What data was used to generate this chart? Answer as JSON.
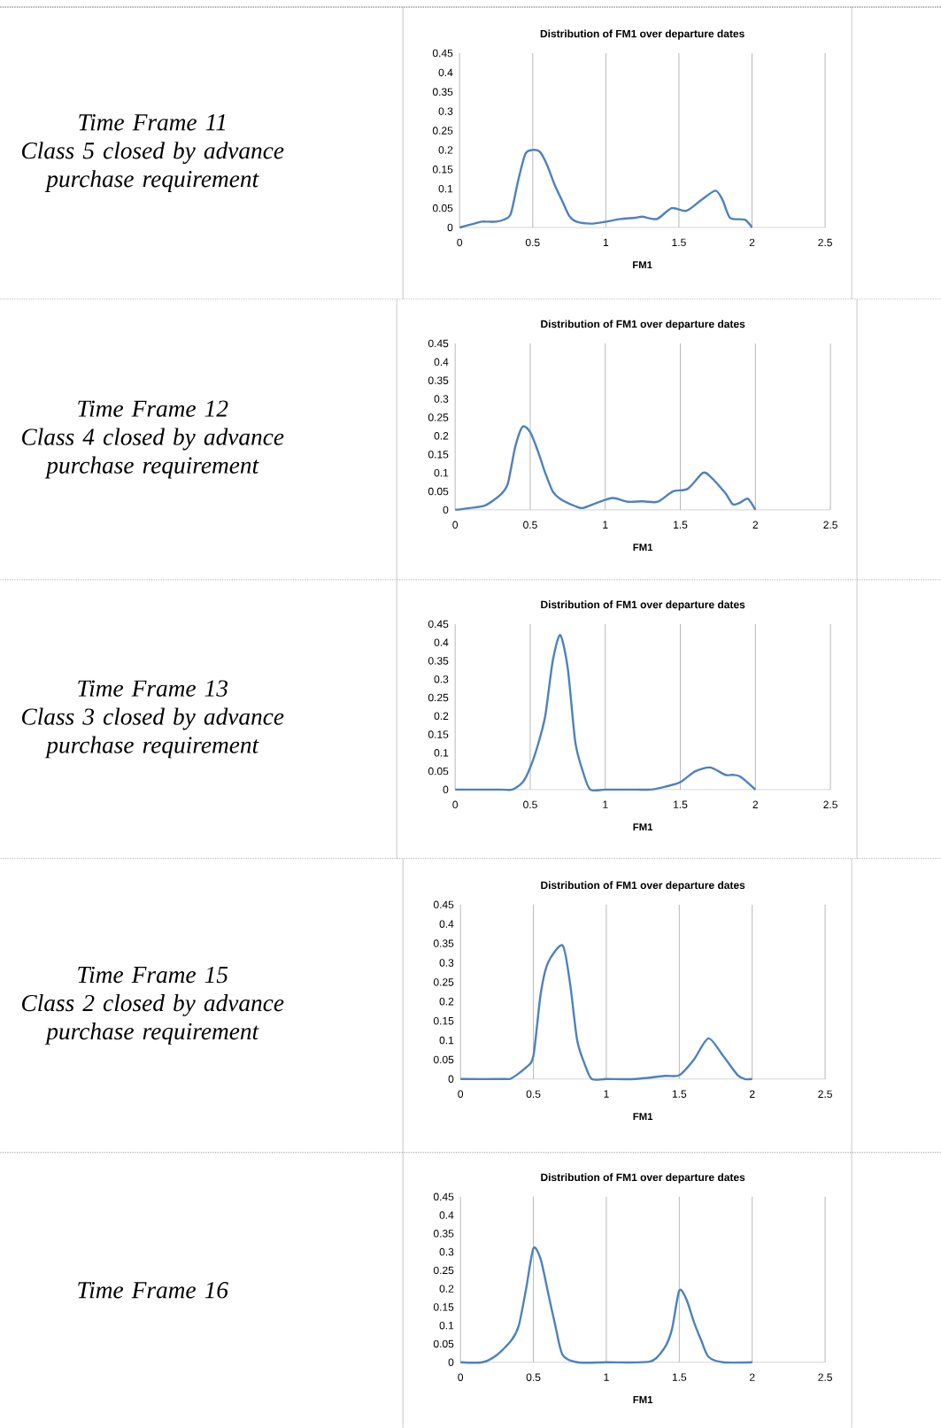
{
  "chart_data": [
    {
      "type": "line",
      "title": "Distribution of FM1 over departure dates",
      "xlabel": "FM1",
      "annotations": [
        "Time Frame 11",
        "Class 5 closed by advance purchase requirement"
      ],
      "color": "#4f81bd",
      "grid": "x",
      "xlim": [
        0,
        2.5
      ],
      "ylim": [
        0,
        0.45
      ],
      "xticks": [
        0,
        0.5,
        1,
        1.5,
        2,
        2.5
      ],
      "yticks": [
        0,
        0.05,
        0.1,
        0.15,
        0.2,
        0.25,
        0.3,
        0.35,
        0.4,
        0.45
      ],
      "x": [
        0,
        0.1,
        0.15,
        0.2,
        0.25,
        0.3,
        0.35,
        0.4,
        0.45,
        0.5,
        0.55,
        0.6,
        0.65,
        0.7,
        0.75,
        0.8,
        0.9,
        1.0,
        1.1,
        1.2,
        1.25,
        1.35,
        1.45,
        1.55,
        1.65,
        1.75,
        1.8,
        1.85,
        1.95,
        2.0
      ],
      "values": [
        0,
        0.01,
        0.015,
        0.015,
        0.015,
        0.02,
        0.035,
        0.12,
        0.19,
        0.2,
        0.195,
        0.16,
        0.11,
        0.07,
        0.03,
        0.015,
        0.01,
        0.015,
        0.022,
        0.025,
        0.028,
        0.022,
        0.05,
        0.043,
        0.07,
        0.095,
        0.07,
        0.025,
        0.02,
        0
      ]
    },
    {
      "type": "line",
      "title": "Distribution of FM1 over departure dates",
      "xlabel": "FM1",
      "annotations": [
        "Time Frame 12",
        "Class 4 closed by advance purchase requirement"
      ],
      "color": "#4f81bd",
      "grid": "x",
      "xlim": [
        0,
        2.5
      ],
      "ylim": [
        0,
        0.45
      ],
      "xticks": [
        0,
        0.5,
        1,
        1.5,
        2,
        2.5
      ],
      "yticks": [
        0,
        0.05,
        0.1,
        0.15,
        0.2,
        0.25,
        0.3,
        0.35,
        0.4,
        0.45
      ],
      "x": [
        0,
        0.1,
        0.2,
        0.3,
        0.35,
        0.4,
        0.45,
        0.5,
        0.55,
        0.6,
        0.65,
        0.7,
        0.8,
        0.85,
        0.95,
        1.05,
        1.15,
        1.25,
        1.35,
        1.45,
        1.55,
        1.65,
        1.7,
        1.8,
        1.85,
        1.9,
        1.95,
        2.0
      ],
      "values": [
        0,
        0.005,
        0.012,
        0.04,
        0.07,
        0.17,
        0.225,
        0.21,
        0.16,
        0.1,
        0.05,
        0.03,
        0.01,
        0.005,
        0.02,
        0.032,
        0.022,
        0.023,
        0.022,
        0.05,
        0.057,
        0.1,
        0.09,
        0.045,
        0.015,
        0.02,
        0.03,
        0
      ]
    },
    {
      "type": "line",
      "title": "Distribution of FM1 over departure dates",
      "xlabel": "FM1",
      "annotations": [
        "Time Frame 13",
        "Class 3 closed by advance purchase requirement"
      ],
      "color": "#4f81bd",
      "grid": "x",
      "xlim": [
        0,
        2.5
      ],
      "ylim": [
        0,
        0.45
      ],
      "xticks": [
        0,
        0.5,
        1,
        1.5,
        2,
        2.5
      ],
      "yticks": [
        0,
        0.05,
        0.1,
        0.15,
        0.2,
        0.25,
        0.3,
        0.35,
        0.4,
        0.45
      ],
      "x": [
        0,
        0.3,
        0.38,
        0.45,
        0.5,
        0.55,
        0.6,
        0.65,
        0.7,
        0.75,
        0.8,
        0.85,
        0.9,
        1.0,
        1.2,
        1.3,
        1.4,
        1.5,
        1.6,
        1.7,
        1.8,
        1.85,
        1.9,
        2.0
      ],
      "values": [
        0,
        0,
        0,
        0.02,
        0.06,
        0.12,
        0.2,
        0.35,
        0.42,
        0.33,
        0.13,
        0.05,
        0,
        0,
        0,
        0,
        0.008,
        0.02,
        0.05,
        0.06,
        0.04,
        0.04,
        0.035,
        0
      ]
    },
    {
      "type": "line",
      "title": "Distribution of FM1 over departure dates",
      "xlabel": "FM1",
      "annotations": [
        "Time Frame 15",
        "Class 2 closed by advance purchase requirement"
      ],
      "color": "#4f81bd",
      "grid": "x",
      "xlim": [
        0,
        2.5
      ],
      "ylim": [
        0,
        0.45
      ],
      "xticks": [
        0,
        0.5,
        1,
        1.5,
        2,
        2.5
      ],
      "yticks": [
        0,
        0.05,
        0.1,
        0.15,
        0.2,
        0.25,
        0.3,
        0.35,
        0.4,
        0.45
      ],
      "x": [
        0,
        0.3,
        0.35,
        0.45,
        0.5,
        0.55,
        0.6,
        0.7,
        0.75,
        0.8,
        0.85,
        0.9,
        1.0,
        1.2,
        1.4,
        1.5,
        1.6,
        1.7,
        1.8,
        1.9,
        1.95,
        2.0
      ],
      "values": [
        0,
        0,
        0.002,
        0.03,
        0.06,
        0.22,
        0.3,
        0.345,
        0.25,
        0.1,
        0.04,
        0,
        0,
        0,
        0.008,
        0.01,
        0.05,
        0.105,
        0.06,
        0.01,
        0,
        0
      ]
    },
    {
      "type": "line",
      "title": "Distribution of FM1 over departure dates",
      "xlabel": "FM1",
      "annotations": [
        "Time Frame 16"
      ],
      "color": "#4f81bd",
      "grid": "x",
      "xlim": [
        0,
        2.5
      ],
      "ylim": [
        0,
        0.45
      ],
      "xticks": [
        0,
        0.5,
        1,
        1.5,
        2,
        2.5
      ],
      "yticks": [
        0,
        0.05,
        0.1,
        0.15,
        0.2,
        0.25,
        0.3,
        0.35,
        0.4,
        0.45
      ],
      "x": [
        0,
        0.15,
        0.25,
        0.35,
        0.4,
        0.45,
        0.5,
        0.55,
        0.6,
        0.65,
        0.7,
        0.8,
        1.0,
        1.3,
        1.4,
        1.45,
        1.5,
        1.55,
        1.6,
        1.65,
        1.7,
        1.8,
        2.0
      ],
      "values": [
        0,
        0,
        0.02,
        0.06,
        0.1,
        0.2,
        0.31,
        0.28,
        0.19,
        0.1,
        0.02,
        0,
        0,
        0.002,
        0.04,
        0.09,
        0.195,
        0.17,
        0.11,
        0.06,
        0.015,
        0,
        0
      ]
    }
  ]
}
